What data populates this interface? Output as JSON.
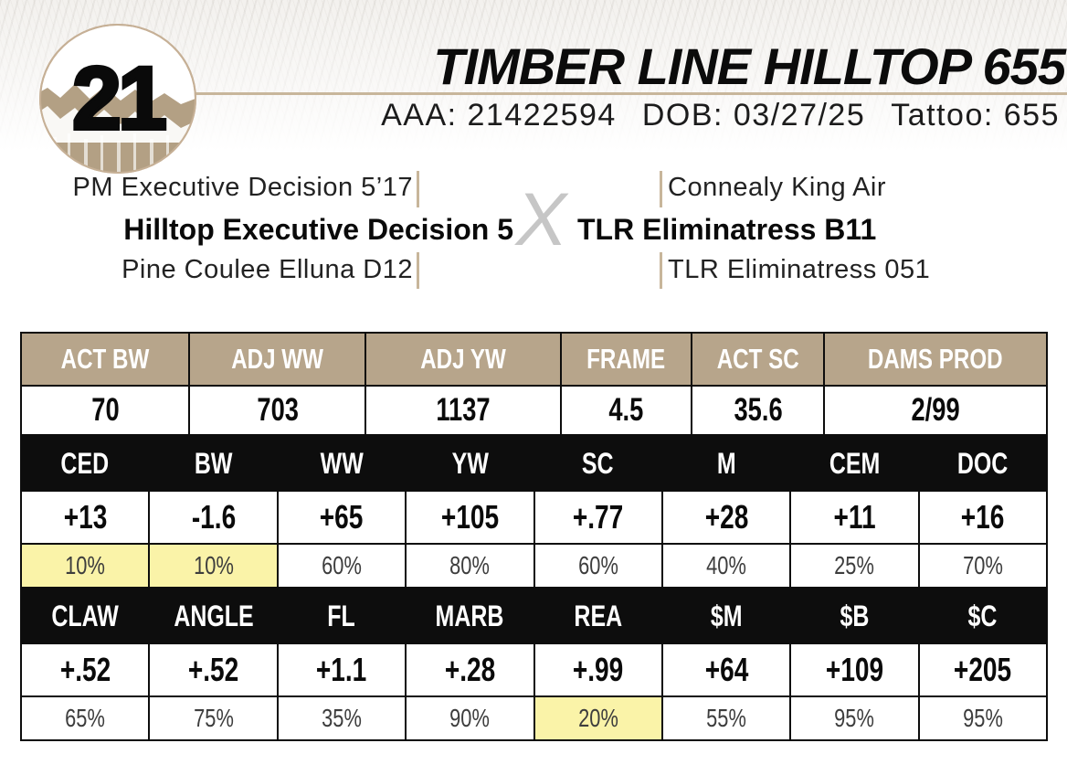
{
  "lot": {
    "number": "21"
  },
  "header": {
    "title": "TIMBER LINE HILLTOP 655",
    "registration": "AAA: 21422594",
    "dob": "DOB: 03/27/25",
    "tattoo": "Tattoo: 655"
  },
  "pedigree": {
    "cross_symbol": "X",
    "sire": {
      "name": "Hilltop Executive Decision 5",
      "sire": "PM Executive Decision 5’17",
      "dam": "Pine Coulee Elluna D12"
    },
    "dam": {
      "name": "TLR Eliminatress B11",
      "sire": "Connealy King Air",
      "dam": "TLR Eliminatress 051"
    }
  },
  "performance_table": {
    "columns": [
      "ACT BW",
      "ADJ WW",
      "ADJ YW",
      "FRAME",
      "ACT SC",
      "DAMS PROD"
    ],
    "values": [
      "70",
      "703",
      "1137",
      "4.5",
      "35.6",
      "2/99"
    ]
  },
  "epd_table_1": {
    "columns": [
      "CED",
      "BW",
      "WW",
      "YW",
      "SC",
      "M",
      "CEM",
      "DOC"
    ],
    "values": [
      "+13",
      "-1.6",
      "+65",
      "+105",
      "+.77",
      "+28",
      "+11",
      "+16"
    ],
    "percents": [
      "10%",
      "10%",
      "60%",
      "80%",
      "60%",
      "40%",
      "25%",
      "70%"
    ],
    "highlighted": [
      true,
      true,
      false,
      false,
      false,
      false,
      false,
      false
    ]
  },
  "epd_table_2": {
    "columns": [
      "CLAW",
      "ANGLE",
      "FL",
      "MARB",
      "REA",
      "$M",
      "$B",
      "$C"
    ],
    "values": [
      "+.52",
      "+.52",
      "+1.1",
      "+.28",
      "+.99",
      "+64",
      "+109",
      "+205"
    ],
    "percents": [
      "65%",
      "75%",
      "35%",
      "90%",
      "20%",
      "55%",
      "95%",
      "95%"
    ],
    "highlighted": [
      false,
      false,
      false,
      false,
      true,
      false,
      false,
      false
    ]
  },
  "colors": {
    "tan_header": "#b7a58b",
    "highlight_yellow": "#faf3a8",
    "header_black": "#0d0d0d",
    "rule_tan": "#c8b69b",
    "cross_gray": "#c6c6c6"
  }
}
